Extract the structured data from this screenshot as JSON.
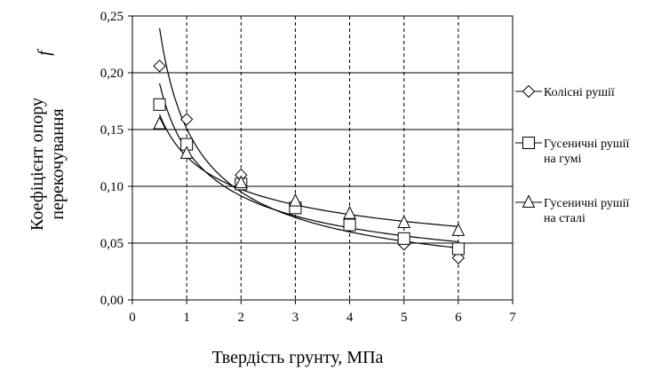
{
  "chart_data": {
    "type": "line",
    "title": "",
    "xlabel": "Твердість грунту, МПа",
    "ylabel_line1": "Коефіцієнт опору",
    "ylabel_line2": "перекочування",
    "ylabel_symbol": "f",
    "xlim": [
      0,
      7
    ],
    "ylim": [
      0,
      0.25
    ],
    "x_ticks": [
      "0",
      "1",
      "2",
      "3",
      "4",
      "5",
      "6",
      "7"
    ],
    "y_ticks": [
      "0,00",
      "0,05",
      "0,10",
      "0,15",
      "0,20",
      "0,25"
    ],
    "x_tick_values": [
      0,
      1,
      2,
      3,
      4,
      5,
      6,
      7
    ],
    "y_tick_values": [
      0,
      0.05,
      0.1,
      0.15,
      0.2,
      0.25
    ],
    "grid": true,
    "legend_position": "right",
    "x": [
      0.5,
      1,
      2,
      3,
      4,
      5,
      6
    ],
    "series": [
      {
        "name_lines": [
          "Колісні рушії"
        ],
        "marker": "diamond",
        "values": [
          0.206,
          0.159,
          0.11,
          0.083,
          0.065,
          0.049,
          0.037
        ]
      },
      {
        "name_lines": [
          "Гусеничні рушії",
          "на гумі"
        ],
        "marker": "square",
        "values": [
          0.172,
          0.137,
          0.102,
          0.081,
          0.066,
          0.054,
          0.045
        ]
      },
      {
        "name_lines": [
          "Гусеничні рушії",
          "на сталі"
        ],
        "marker": "triangle",
        "values": [
          0.155,
          0.129,
          0.103,
          0.087,
          0.076,
          0.068,
          0.061
        ]
      }
    ]
  }
}
